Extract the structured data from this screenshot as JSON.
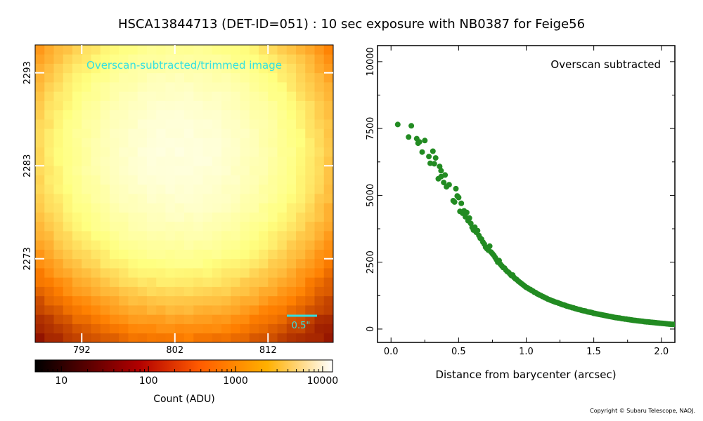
{
  "figure": {
    "title": "HSCA13844713 (DET-ID=051) :  10 sec exposure with NB0387 for Feige56",
    "copyright": "Copyright © Subaru Telescope, NAOJ."
  },
  "colors": {
    "cutout_label": "#33e0e0",
    "scale_bar": "#33e0e0",
    "points": "#228b22"
  },
  "chart_data": [
    {
      "type": "heatmap",
      "annotation": "Overscan-subtracted/trimmed image",
      "scale_bar_label": "0.5\"",
      "x_ticks": [
        792,
        802,
        812
      ],
      "y_ticks": [
        2273,
        2283,
        2293
      ],
      "xlim": [
        787,
        819
      ],
      "ylim": [
        2264,
        2296
      ],
      "colorbar": {
        "label": "Count (ADU)",
        "scale": "log",
        "range": [
          5,
          13000
        ],
        "ticks": [
          {
            "value": 10,
            "label": "10"
          },
          {
            "value": 100,
            "label": "100"
          },
          {
            "value": 1000,
            "label": "1000"
          },
          {
            "value": 10000,
            "label": "10000"
          }
        ]
      },
      "colormap": "afmhot",
      "source_center": [
        802.5,
        2284.5
      ],
      "peak_counts": 7600
    },
    {
      "type": "scatter",
      "annotation": "Overscan subtracted",
      "xlabel": "Distance from barycenter (arcsec)",
      "ylabel": "",
      "xlim": [
        -0.1,
        2.1
      ],
      "ylim": [
        -500,
        10600
      ],
      "x_ticks": [
        {
          "value": 0.0,
          "label": "0.0"
        },
        {
          "value": 0.5,
          "label": "0.5"
        },
        {
          "value": 1.0,
          "label": "1.0"
        },
        {
          "value": 1.5,
          "label": "1.5"
        },
        {
          "value": 2.0,
          "label": "2.0"
        }
      ],
      "y_ticks": [
        {
          "value": 0,
          "label": "0"
        },
        {
          "value": 2500,
          "label": "2500"
        },
        {
          "value": 5000,
          "label": "5000"
        },
        {
          "value": 7500,
          "label": "7500"
        },
        {
          "value": 10000,
          "label": "10000"
        }
      ],
      "points": [
        [
          0.05,
          7650
        ],
        [
          0.13,
          7180
        ],
        [
          0.15,
          7600
        ],
        [
          0.19,
          7120
        ],
        [
          0.2,
          6950
        ],
        [
          0.21,
          7000
        ],
        [
          0.23,
          6620
        ],
        [
          0.25,
          7050
        ],
        [
          0.28,
          6450
        ],
        [
          0.29,
          6200
        ],
        [
          0.31,
          6650
        ],
        [
          0.32,
          6180
        ],
        [
          0.33,
          6400
        ],
        [
          0.35,
          5620
        ],
        [
          0.36,
          6080
        ],
        [
          0.37,
          5700
        ],
        [
          0.37,
          5920
        ],
        [
          0.39,
          5480
        ],
        [
          0.4,
          5760
        ],
        [
          0.41,
          5320
        ],
        [
          0.43,
          5400
        ],
        [
          0.46,
          4800
        ],
        [
          0.47,
          4750
        ],
        [
          0.48,
          5250
        ],
        [
          0.49,
          4980
        ],
        [
          0.5,
          4920
        ],
        [
          0.51,
          4400
        ],
        [
          0.52,
          4700
        ],
        [
          0.53,
          4330
        ],
        [
          0.54,
          4420
        ],
        [
          0.55,
          4200
        ],
        [
          0.56,
          4360
        ],
        [
          0.57,
          4050
        ],
        [
          0.58,
          4150
        ],
        [
          0.59,
          3950
        ],
        [
          0.6,
          3800
        ],
        [
          0.61,
          3700
        ],
        [
          0.62,
          3810
        ],
        [
          0.63,
          3620
        ],
        [
          0.64,
          3680
        ],
        [
          0.65,
          3500
        ],
        [
          0.66,
          3400
        ],
        [
          0.67,
          3360
        ],
        [
          0.68,
          3250
        ],
        [
          0.69,
          3180
        ],
        [
          0.7,
          3060
        ],
        [
          0.71,
          3000
        ],
        [
          0.72,
          2950
        ],
        [
          0.73,
          3100
        ],
        [
          0.74,
          2880
        ],
        [
          0.75,
          2820
        ],
        [
          0.76,
          2760
        ],
        [
          0.77,
          2680
        ],
        [
          0.78,
          2600
        ],
        [
          0.79,
          2500
        ],
        [
          0.8,
          2560
        ],
        [
          0.81,
          2420
        ],
        [
          0.82,
          2360
        ],
        [
          0.83,
          2300
        ],
        [
          0.84,
          2280
        ],
        [
          0.85,
          2200
        ],
        [
          0.86,
          2150
        ],
        [
          0.87,
          2120
        ],
        [
          0.88,
          2060
        ],
        [
          0.89,
          2000
        ],
        [
          0.9,
          2020
        ],
        [
          0.91,
          1930
        ],
        [
          0.92,
          1880
        ],
        [
          0.93,
          1850
        ],
        [
          0.94,
          1800
        ],
        [
          0.95,
          1760
        ],
        [
          0.96,
          1720
        ],
        [
          0.97,
          1680
        ],
        [
          0.98,
          1640
        ],
        [
          0.99,
          1600
        ],
        [
          1.0,
          1560
        ],
        [
          1.01,
          1540
        ],
        [
          1.02,
          1500
        ],
        [
          1.03,
          1480
        ],
        [
          1.04,
          1440
        ],
        [
          1.05,
          1420
        ],
        [
          1.06,
          1380
        ],
        [
          1.07,
          1360
        ],
        [
          1.08,
          1320
        ],
        [
          1.09,
          1300
        ],
        [
          1.1,
          1270
        ],
        [
          1.11,
          1250
        ],
        [
          1.12,
          1220
        ],
        [
          1.13,
          1200
        ],
        [
          1.14,
          1170
        ],
        [
          1.15,
          1150
        ],
        [
          1.16,
          1120
        ],
        [
          1.17,
          1100
        ],
        [
          1.18,
          1080
        ],
        [
          1.19,
          1060
        ],
        [
          1.2,
          1040
        ],
        [
          1.21,
          1020
        ],
        [
          1.22,
          1000
        ],
        [
          1.23,
          990
        ],
        [
          1.24,
          970
        ],
        [
          1.25,
          950
        ],
        [
          1.26,
          930
        ],
        [
          1.27,
          910
        ],
        [
          1.28,
          900
        ],
        [
          1.29,
          880
        ],
        [
          1.3,
          860
        ],
        [
          1.31,
          850
        ],
        [
          1.32,
          830
        ],
        [
          1.33,
          820
        ],
        [
          1.34,
          800
        ],
        [
          1.35,
          790
        ],
        [
          1.36,
          770
        ],
        [
          1.37,
          760
        ],
        [
          1.38,
          740
        ],
        [
          1.39,
          730
        ],
        [
          1.4,
          720
        ],
        [
          1.41,
          700
        ],
        [
          1.42,
          690
        ],
        [
          1.43,
          680
        ],
        [
          1.44,
          670
        ],
        [
          1.45,
          650
        ],
        [
          1.46,
          640
        ],
        [
          1.47,
          630
        ],
        [
          1.48,
          620
        ],
        [
          1.49,
          610
        ],
        [
          1.5,
          590
        ],
        [
          1.51,
          580
        ],
        [
          1.52,
          570
        ],
        [
          1.53,
          560
        ],
        [
          1.54,
          550
        ],
        [
          1.55,
          540
        ],
        [
          1.56,
          530
        ],
        [
          1.57,
          520
        ],
        [
          1.58,
          510
        ],
        [
          1.59,
          500
        ],
        [
          1.6,
          490
        ],
        [
          1.61,
          480
        ],
        [
          1.62,
          470
        ],
        [
          1.63,
          460
        ],
        [
          1.64,
          450
        ],
        [
          1.65,
          440
        ],
        [
          1.66,
          430
        ],
        [
          1.67,
          425
        ],
        [
          1.68,
          415
        ],
        [
          1.69,
          410
        ],
        [
          1.7,
          400
        ],
        [
          1.71,
          390
        ],
        [
          1.72,
          385
        ],
        [
          1.73,
          375
        ],
        [
          1.74,
          370
        ],
        [
          1.75,
          360
        ],
        [
          1.76,
          355
        ],
        [
          1.77,
          345
        ],
        [
          1.78,
          340
        ],
        [
          1.79,
          330
        ],
        [
          1.8,
          325
        ],
        [
          1.81,
          320
        ],
        [
          1.82,
          310
        ],
        [
          1.83,
          305
        ],
        [
          1.84,
          300
        ],
        [
          1.85,
          295
        ],
        [
          1.86,
          290
        ],
        [
          1.87,
          280
        ],
        [
          1.88,
          275
        ],
        [
          1.89,
          270
        ],
        [
          1.9,
          265
        ],
        [
          1.91,
          260
        ],
        [
          1.92,
          255
        ],
        [
          1.93,
          250
        ],
        [
          1.94,
          245
        ],
        [
          1.95,
          240
        ],
        [
          1.96,
          235
        ],
        [
          1.97,
          230
        ],
        [
          1.98,
          225
        ],
        [
          1.99,
          220
        ],
        [
          2.0,
          215
        ],
        [
          2.01,
          210
        ],
        [
          2.02,
          205
        ],
        [
          2.03,
          200
        ],
        [
          2.04,
          195
        ],
        [
          2.05,
          190
        ],
        [
          2.06,
          185
        ],
        [
          2.07,
          180
        ],
        [
          2.08,
          178
        ],
        [
          2.09,
          175
        ]
      ]
    }
  ]
}
